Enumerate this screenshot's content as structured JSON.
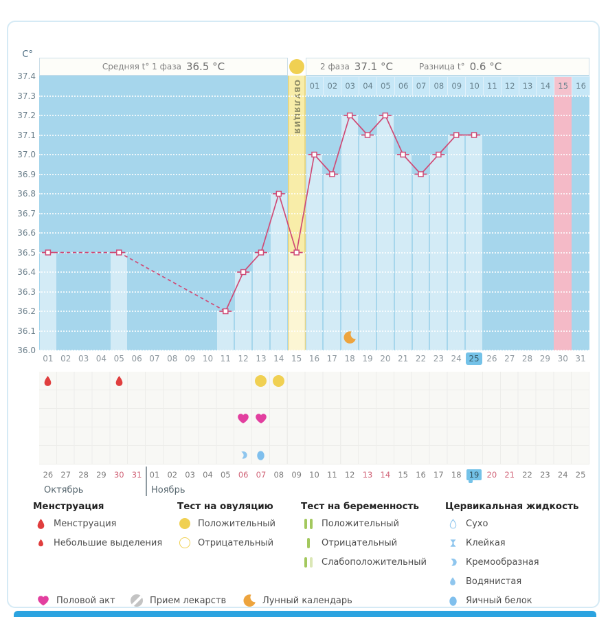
{
  "header": {
    "phase1_label": "Средняя t° 1 фаза",
    "phase1_value": "36.5 °C",
    "phase2_label": "2 фаза",
    "phase2_value": "37.1 °C",
    "diff_label": "Разница t°",
    "diff_value": "0.6 °C",
    "ovulation_label": "ОВУЛЯЦИЯ"
  },
  "axis": {
    "unit": "C°",
    "y_ticks": [
      "37.4",
      "37.3",
      "37.2",
      "37.1",
      "37.0",
      "36.9",
      "36.8",
      "36.7",
      "36.6",
      "36.5",
      "36.4",
      "36.3",
      "36.2",
      "36.1",
      "36.0"
    ],
    "cycle_days": [
      "01",
      "02",
      "03",
      "04",
      "05",
      "06",
      "07",
      "08",
      "09",
      "10",
      "11",
      "12",
      "13",
      "14",
      "15",
      "16",
      "17",
      "18",
      "19",
      "20",
      "21",
      "22",
      "23",
      "24",
      "25",
      "26",
      "27",
      "28",
      "29",
      "30",
      "31"
    ],
    "phase2_days": [
      "01",
      "02",
      "03",
      "04",
      "05",
      "06",
      "07",
      "08",
      "09",
      "10",
      "11",
      "12",
      "13",
      "14",
      "15",
      "16"
    ]
  },
  "chart_data": {
    "type": "line",
    "title": "График базальной температуры",
    "x_cycle_days": [
      1,
      5,
      11,
      12,
      13,
      14,
      15,
      16,
      17,
      18,
      19,
      20,
      21,
      22,
      23,
      24,
      25
    ],
    "values": [
      36.5,
      36.5,
      36.2,
      36.4,
      36.5,
      36.8,
      36.5,
      37.0,
      36.9,
      37.2,
      37.1,
      37.2,
      37.0,
      36.9,
      37.0,
      37.1,
      37.1
    ],
    "ylim": [
      36.0,
      37.4
    ],
    "x_days_total": 31,
    "ovulation_day": 15,
    "expected_period_day": 30,
    "current_cycle_day": 25,
    "avg_phase1_temp": 36.5,
    "avg_phase2_temp": 37.1,
    "temp_difference": 0.6,
    "grid": "horizontal-dotted",
    "legend_position": "bottom"
  },
  "events": {
    "menstruation_days": [
      1,
      5
    ],
    "ovulation_test_positive_days": [
      13,
      14
    ],
    "intercourse_days": [
      12,
      13
    ],
    "cervical_fluid": [
      {
        "day": 12,
        "type": "creamy"
      },
      {
        "day": 13,
        "type": "eggwhite"
      }
    ],
    "moon_day": 18
  },
  "calendar": {
    "month_left": "Октябрь",
    "month_right": "Ноябрь",
    "dates": [
      {
        "label": "26"
      },
      {
        "label": "27"
      },
      {
        "label": "28"
      },
      {
        "label": "29"
      },
      {
        "label": "30",
        "red": true
      },
      {
        "label": "31",
        "red": true
      },
      {
        "label": "01"
      },
      {
        "label": "02"
      },
      {
        "label": "03"
      },
      {
        "label": "04"
      },
      {
        "label": "05"
      },
      {
        "label": "06",
        "red": true
      },
      {
        "label": "07",
        "red": true
      },
      {
        "label": "08"
      },
      {
        "label": "09"
      },
      {
        "label": "10"
      },
      {
        "label": "11"
      },
      {
        "label": "12"
      },
      {
        "label": "13",
        "red": true
      },
      {
        "label": "14",
        "red": true
      },
      {
        "label": "15"
      },
      {
        "label": "16"
      },
      {
        "label": "17"
      },
      {
        "label": "18"
      },
      {
        "label": "19",
        "today": true
      },
      {
        "label": "20",
        "red": true
      },
      {
        "label": "21",
        "red": true
      },
      {
        "label": "22"
      },
      {
        "label": "23"
      },
      {
        "label": "24"
      },
      {
        "label": "25"
      }
    ]
  },
  "legend": {
    "sections": [
      {
        "header": "Менструация",
        "items": [
          {
            "icon": "drop-large",
            "label": "Менструация"
          },
          {
            "icon": "drop-small",
            "label": "Небольшие выделения"
          }
        ]
      },
      {
        "header": "Тест на овуляцию",
        "items": [
          {
            "icon": "circle-filled",
            "label": "Положительный"
          },
          {
            "icon": "circle-outline",
            "label": "Отрицательный"
          }
        ]
      },
      {
        "header": "Тест на беременность",
        "items": [
          {
            "icon": "bars-two",
            "label": "Положительный"
          },
          {
            "icon": "bar-one",
            "label": "Отрицательный"
          },
          {
            "icon": "bars-weak",
            "label": "Слабоположительный"
          }
        ]
      },
      {
        "header": "Цервикальная жидкость",
        "items": [
          {
            "icon": "drop-outline",
            "label": "Сухо"
          },
          {
            "icon": "sticky",
            "label": "Клейкая"
          },
          {
            "icon": "creamy",
            "label": "Кремообразная"
          },
          {
            "icon": "watery",
            "label": "Водянистая"
          },
          {
            "icon": "eggwhite",
            "label": "Яичный белок"
          }
        ]
      }
    ],
    "bottom": [
      {
        "icon": "heart",
        "label": "Половой акт"
      },
      {
        "icon": "pill",
        "label": "Прием лекарств"
      },
      {
        "icon": "moon",
        "label": "Лунный календарь"
      }
    ]
  },
  "colors": {
    "plot_bg": "#a6d6ec",
    "line": "#cf4b76",
    "ovulation_band": "#f8eda9",
    "period_band": "#f4bac7",
    "highlight": "#74c2e8",
    "menstruation": "#e03e3e",
    "ovulation_test": "#f0d052",
    "intercourse": "#e23f9f",
    "cervical": "#8fc6ee",
    "moon": "#eda43e",
    "pregnancy_test": "#a3c85e",
    "red_date": "#d06276",
    "footer": "#2ba3e0"
  }
}
